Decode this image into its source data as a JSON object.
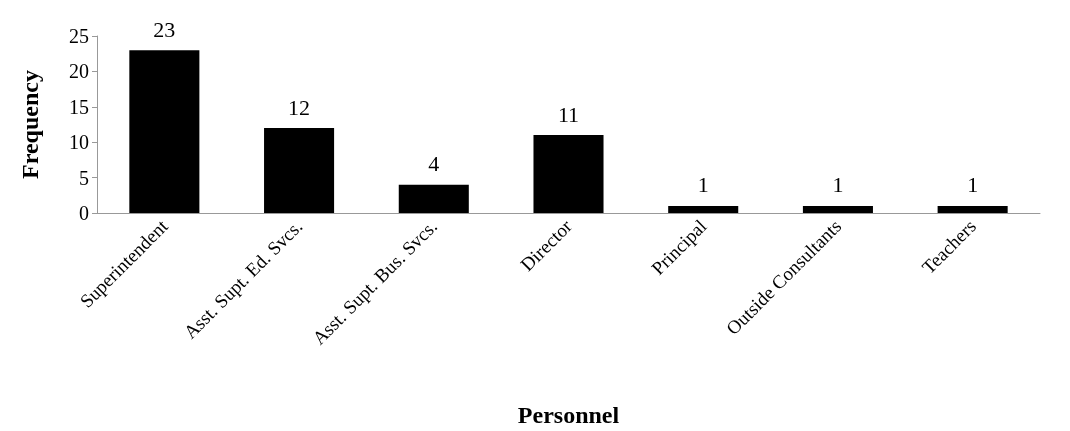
{
  "chart_data": {
    "type": "bar",
    "xlabel": "Personnel",
    "ylabel": "Frequency",
    "categories": [
      "Superintendent",
      "Asst. Supt. Ed. Svcs.",
      "Asst. Supt. Bus. Svcs.",
      "Director",
      "Principal",
      "Outside Consultants",
      "Teachers"
    ],
    "values": [
      23,
      12,
      4,
      11,
      1,
      1,
      1
    ],
    "color": "#000000",
    "ylim": [
      0,
      25
    ],
    "yticks": [
      0,
      5,
      10,
      15,
      20,
      25
    ],
    "grid": false,
    "data_labels": true
  }
}
